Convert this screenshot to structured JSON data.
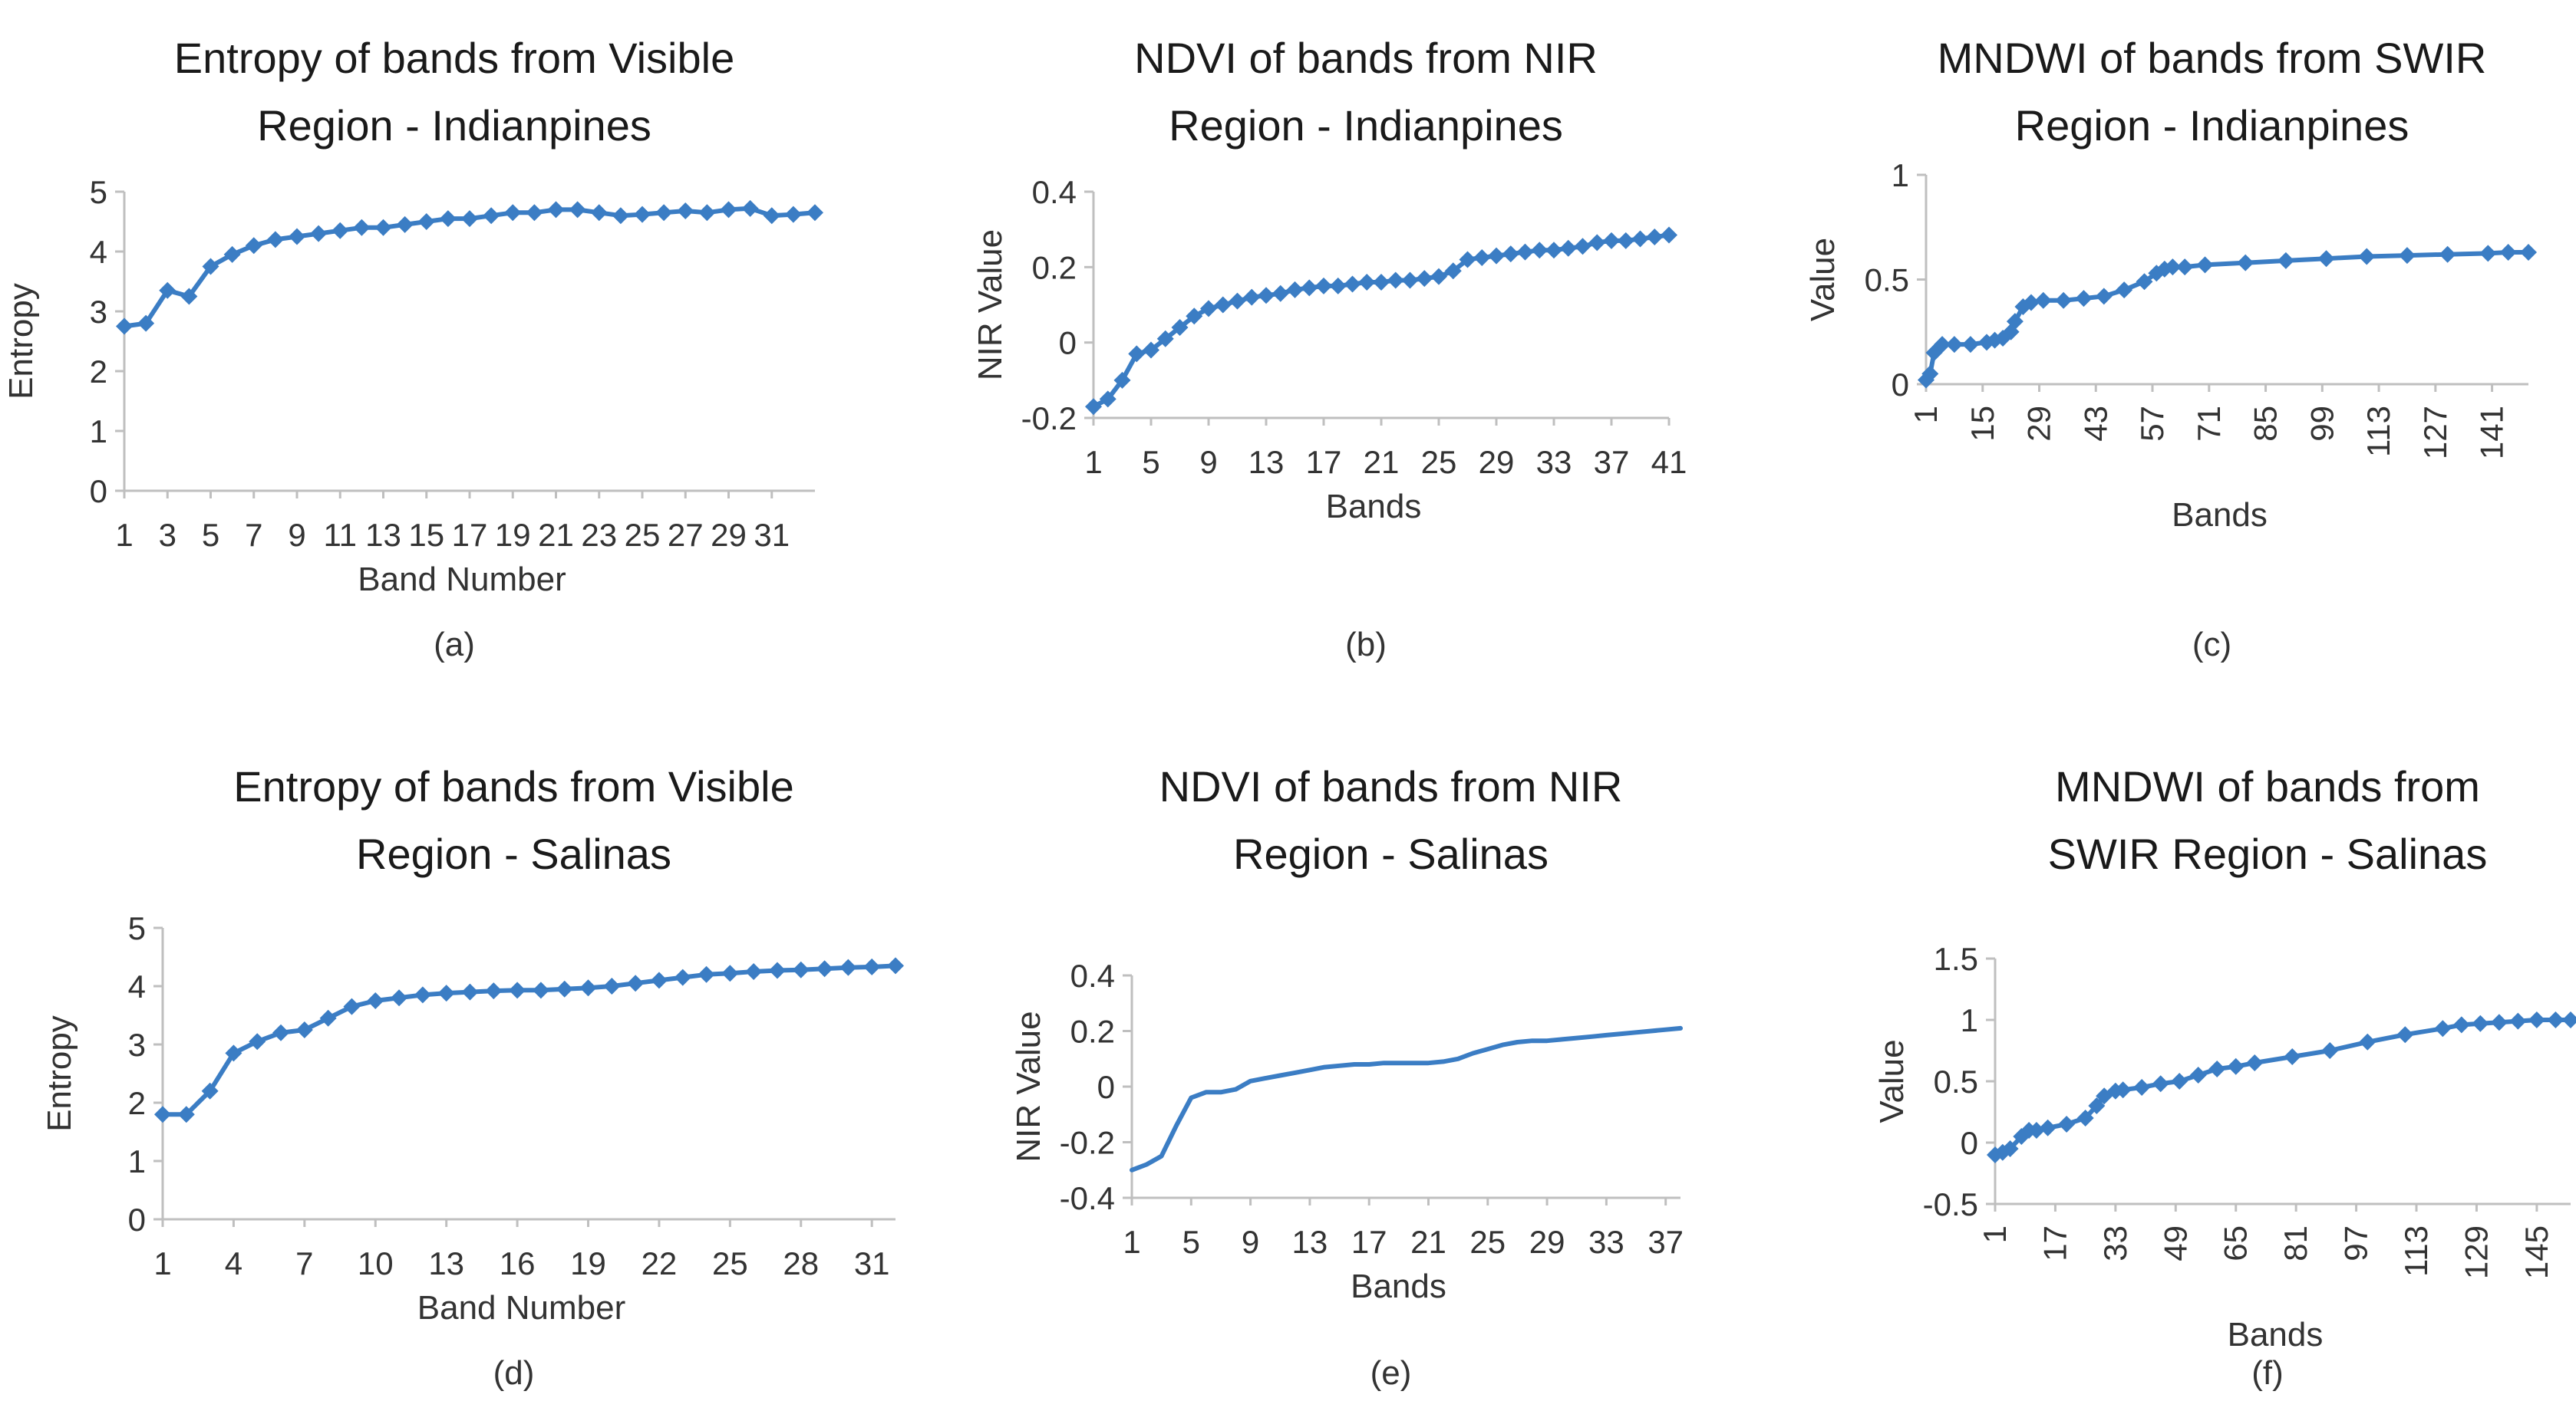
{
  "color_series": "#3b7dc4",
  "chart_data": [
    {
      "id": "a",
      "type": "line",
      "marker": "diamond",
      "title_lines": [
        "Entropy of bands from Visible",
        "Region - Indianpines"
      ],
      "xlabel": "Band Number",
      "ylabel": "Entropy",
      "caption": "(a)",
      "ylim": [
        0,
        5
      ],
      "yticks": [
        "0",
        "1",
        "2",
        "3",
        "4",
        "5"
      ],
      "xtick_rotate": false,
      "xticks": [
        {
          "x": 1,
          "label": "1"
        },
        {
          "x": 3,
          "label": "3"
        },
        {
          "x": 5,
          "label": "5"
        },
        {
          "x": 7,
          "label": "7"
        },
        {
          "x": 9,
          "label": "9"
        },
        {
          "x": 11,
          "label": "11"
        },
        {
          "x": 13,
          "label": "13"
        },
        {
          "x": 15,
          "label": "15"
        },
        {
          "x": 17,
          "label": "17"
        },
        {
          "x": 19,
          "label": "19"
        },
        {
          "x": 21,
          "label": "21"
        },
        {
          "x": 23,
          "label": "23"
        },
        {
          "x": 25,
          "label": "25"
        },
        {
          "x": 27,
          "label": "27"
        },
        {
          "x": 29,
          "label": "29"
        },
        {
          "x": 31,
          "label": "31"
        }
      ],
      "x": [
        1,
        2,
        3,
        4,
        5,
        6,
        7,
        8,
        9,
        10,
        11,
        12,
        13,
        14,
        15,
        16,
        17,
        18,
        19,
        20,
        21,
        22,
        23,
        24,
        25,
        26,
        27,
        28,
        29,
        30,
        31,
        32,
        33
      ],
      "y": [
        2.75,
        2.8,
        3.35,
        3.25,
        3.75,
        3.95,
        4.1,
        4.2,
        4.25,
        4.3,
        4.35,
        4.4,
        4.4,
        4.45,
        4.5,
        4.55,
        4.55,
        4.6,
        4.65,
        4.65,
        4.7,
        4.7,
        4.65,
        4.6,
        4.62,
        4.65,
        4.68,
        4.65,
        4.7,
        4.72,
        4.6,
        4.62,
        4.65
      ]
    },
    {
      "id": "b",
      "type": "line",
      "marker": "diamond",
      "title_lines": [
        "NDVI of bands from NIR",
        "Region - Indianpines"
      ],
      "xlabel": "Bands",
      "ylabel": "NIR Value",
      "caption": "(b)",
      "ylim": [
        -0.2,
        0.4
      ],
      "yticks": [
        "-0.2",
        "0",
        "0.2",
        "0.4"
      ],
      "xtick_rotate": false,
      "xticks": [
        {
          "x": 1,
          "label": "1"
        },
        {
          "x": 5,
          "label": "5"
        },
        {
          "x": 9,
          "label": "9"
        },
        {
          "x": 13,
          "label": "13"
        },
        {
          "x": 17,
          "label": "17"
        },
        {
          "x": 21,
          "label": "21"
        },
        {
          "x": 25,
          "label": "25"
        },
        {
          "x": 29,
          "label": "29"
        },
        {
          "x": 33,
          "label": "33"
        },
        {
          "x": 37,
          "label": "37"
        },
        {
          "x": 41,
          "label": "41"
        }
      ],
      "x": [
        1,
        2,
        3,
        4,
        5,
        6,
        7,
        8,
        9,
        10,
        11,
        12,
        13,
        14,
        15,
        16,
        17,
        18,
        19,
        20,
        21,
        22,
        23,
        24,
        25,
        26,
        27,
        28,
        29,
        30,
        31,
        32,
        33,
        34,
        35,
        36,
        37,
        38,
        39,
        40,
        41
      ],
      "y": [
        -0.17,
        -0.15,
        -0.1,
        -0.03,
        -0.02,
        0.01,
        0.04,
        0.07,
        0.09,
        0.1,
        0.11,
        0.12,
        0.125,
        0.13,
        0.14,
        0.145,
        0.15,
        0.15,
        0.155,
        0.16,
        0.16,
        0.165,
        0.165,
        0.17,
        0.175,
        0.19,
        0.22,
        0.225,
        0.23,
        0.235,
        0.24,
        0.245,
        0.245,
        0.25,
        0.255,
        0.265,
        0.27,
        0.27,
        0.275,
        0.28,
        0.285
      ]
    },
    {
      "id": "c",
      "type": "line",
      "marker": "diamond",
      "title_lines": [
        "MNDWI of bands from SWIR",
        "Region - Indianpines"
      ],
      "xlabel": "Bands",
      "ylabel": "Value",
      "caption": "(c)",
      "ylim": [
        0,
        1
      ],
      "yticks": [
        "0",
        "0.5",
        "1"
      ],
      "xtick_rotate": true,
      "xticks": [
        {
          "x": 1,
          "label": "1"
        },
        {
          "x": 15,
          "label": "15"
        },
        {
          "x": 29,
          "label": "29"
        },
        {
          "x": 43,
          "label": "43"
        },
        {
          "x": 57,
          "label": "57"
        },
        {
          "x": 71,
          "label": "71"
        },
        {
          "x": 85,
          "label": "85"
        },
        {
          "x": 99,
          "label": "99"
        },
        {
          "x": 113,
          "label": "113"
        },
        {
          "x": 127,
          "label": "127"
        },
        {
          "x": 141,
          "label": "141"
        }
      ],
      "x": [
        1,
        2,
        3,
        5,
        8,
        12,
        16,
        18,
        20,
        22,
        23,
        25,
        27,
        30,
        35,
        40,
        45,
        50,
        55,
        58,
        60,
        62,
        65,
        70,
        80,
        90,
        100,
        110,
        120,
        130,
        140,
        145,
        150
      ],
      "y": [
        0.02,
        0.05,
        0.15,
        0.19,
        0.19,
        0.19,
        0.2,
        0.21,
        0.22,
        0.25,
        0.3,
        0.37,
        0.39,
        0.4,
        0.4,
        0.41,
        0.42,
        0.45,
        0.49,
        0.53,
        0.55,
        0.56,
        0.56,
        0.57,
        0.58,
        0.59,
        0.6,
        0.61,
        0.615,
        0.62,
        0.625,
        0.63,
        0.63
      ]
    },
    {
      "id": "d",
      "type": "line",
      "marker": "diamond",
      "title_lines": [
        "Entropy of bands from Visible",
        "Region - Salinas"
      ],
      "xlabel": "Band Number",
      "ylabel": "Entropy",
      "caption": "(d)",
      "ylim": [
        0,
        5
      ],
      "yticks": [
        "0",
        "1",
        "2",
        "3",
        "4",
        "5"
      ],
      "xtick_rotate": false,
      "xticks": [
        {
          "x": 1,
          "label": "1"
        },
        {
          "x": 4,
          "label": "4"
        },
        {
          "x": 7,
          "label": "7"
        },
        {
          "x": 10,
          "label": "10"
        },
        {
          "x": 13,
          "label": "13"
        },
        {
          "x": 16,
          "label": "16"
        },
        {
          "x": 19,
          "label": "19"
        },
        {
          "x": 22,
          "label": "22"
        },
        {
          "x": 25,
          "label": "25"
        },
        {
          "x": 28,
          "label": "28"
        },
        {
          "x": 31,
          "label": "31"
        }
      ],
      "x": [
        1,
        2,
        3,
        4,
        5,
        6,
        7,
        8,
        9,
        10,
        11,
        12,
        13,
        14,
        15,
        16,
        17,
        18,
        19,
        20,
        21,
        22,
        23,
        24,
        25,
        26,
        27,
        28,
        29,
        30,
        31,
        32
      ],
      "y": [
        1.8,
        1.8,
        2.2,
        2.85,
        3.05,
        3.2,
        3.25,
        3.45,
        3.65,
        3.75,
        3.8,
        3.85,
        3.88,
        3.9,
        3.92,
        3.93,
        3.93,
        3.95,
        3.97,
        4.0,
        4.05,
        4.1,
        4.15,
        4.2,
        4.22,
        4.25,
        4.27,
        4.28,
        4.3,
        4.32,
        4.33,
        4.35
      ]
    },
    {
      "id": "e",
      "type": "line",
      "marker": "none",
      "title_lines": [
        "NDVI of bands from NIR",
        "Region - Salinas"
      ],
      "xlabel": "Bands",
      "ylabel": "NIR Value",
      "caption": "(e)",
      "ylim": [
        -0.4,
        0.4
      ],
      "yticks": [
        "-0.4",
        "-0.2",
        "0",
        "0.2",
        "0.4"
      ],
      "xtick_rotate": false,
      "xticks": [
        {
          "x": 1,
          "label": "1"
        },
        {
          "x": 5,
          "label": "5"
        },
        {
          "x": 9,
          "label": "9"
        },
        {
          "x": 13,
          "label": "13"
        },
        {
          "x": 17,
          "label": "17"
        },
        {
          "x": 21,
          "label": "21"
        },
        {
          "x": 25,
          "label": "25"
        },
        {
          "x": 29,
          "label": "29"
        },
        {
          "x": 33,
          "label": "33"
        },
        {
          "x": 37,
          "label": "37"
        }
      ],
      "x": [
        1,
        2,
        3,
        4,
        5,
        6,
        7,
        8,
        9,
        10,
        11,
        12,
        13,
        14,
        15,
        16,
        17,
        18,
        19,
        20,
        21,
        22,
        23,
        24,
        25,
        26,
        27,
        28,
        29,
        30,
        31,
        32,
        33,
        34,
        35,
        36,
        37,
        38
      ],
      "y": [
        -0.3,
        -0.28,
        -0.25,
        -0.14,
        -0.04,
        -0.02,
        -0.02,
        -0.01,
        0.02,
        0.03,
        0.04,
        0.05,
        0.06,
        0.07,
        0.075,
        0.08,
        0.08,
        0.085,
        0.085,
        0.085,
        0.085,
        0.09,
        0.1,
        0.12,
        0.135,
        0.15,
        0.16,
        0.165,
        0.165,
        0.17,
        0.175,
        0.18,
        0.185,
        0.19,
        0.195,
        0.2,
        0.205,
        0.21
      ]
    },
    {
      "id": "f",
      "type": "line",
      "marker": "diamond",
      "title_lines": [
        "MNDWI  of bands from",
        "SWIR Region - Salinas"
      ],
      "xlabel": "Bands",
      "ylabel": "Value",
      "caption": "(f)",
      "ylim": [
        -0.5,
        1.5
      ],
      "yticks": [
        "-0.5",
        "0",
        "0.5",
        "1",
        "1.5"
      ],
      "xtick_rotate": true,
      "xticks": [
        {
          "x": 1,
          "label": "1"
        },
        {
          "x": 17,
          "label": "17"
        },
        {
          "x": 33,
          "label": "33"
        },
        {
          "x": 49,
          "label": "49"
        },
        {
          "x": 65,
          "label": "65"
        },
        {
          "x": 81,
          "label": "81"
        },
        {
          "x": 97,
          "label": "97"
        },
        {
          "x": 113,
          "label": "113"
        },
        {
          "x": 129,
          "label": "129"
        },
        {
          "x": 145,
          "label": "145"
        }
      ],
      "x": [
        1,
        3,
        5,
        8,
        10,
        12,
        15,
        20,
        25,
        28,
        30,
        33,
        35,
        40,
        45,
        50,
        55,
        60,
        65,
        70,
        80,
        90,
        100,
        110,
        120,
        125,
        130,
        135,
        140,
        145,
        150,
        154
      ],
      "y": [
        -0.1,
        -0.08,
        -0.05,
        0.05,
        0.1,
        0.1,
        0.12,
        0.15,
        0.2,
        0.3,
        0.38,
        0.42,
        0.43,
        0.45,
        0.48,
        0.5,
        0.55,
        0.6,
        0.62,
        0.65,
        0.7,
        0.75,
        0.82,
        0.88,
        0.93,
        0.96,
        0.97,
        0.98,
        0.99,
        1.0,
        1.0,
        1.0
      ]
    }
  ]
}
